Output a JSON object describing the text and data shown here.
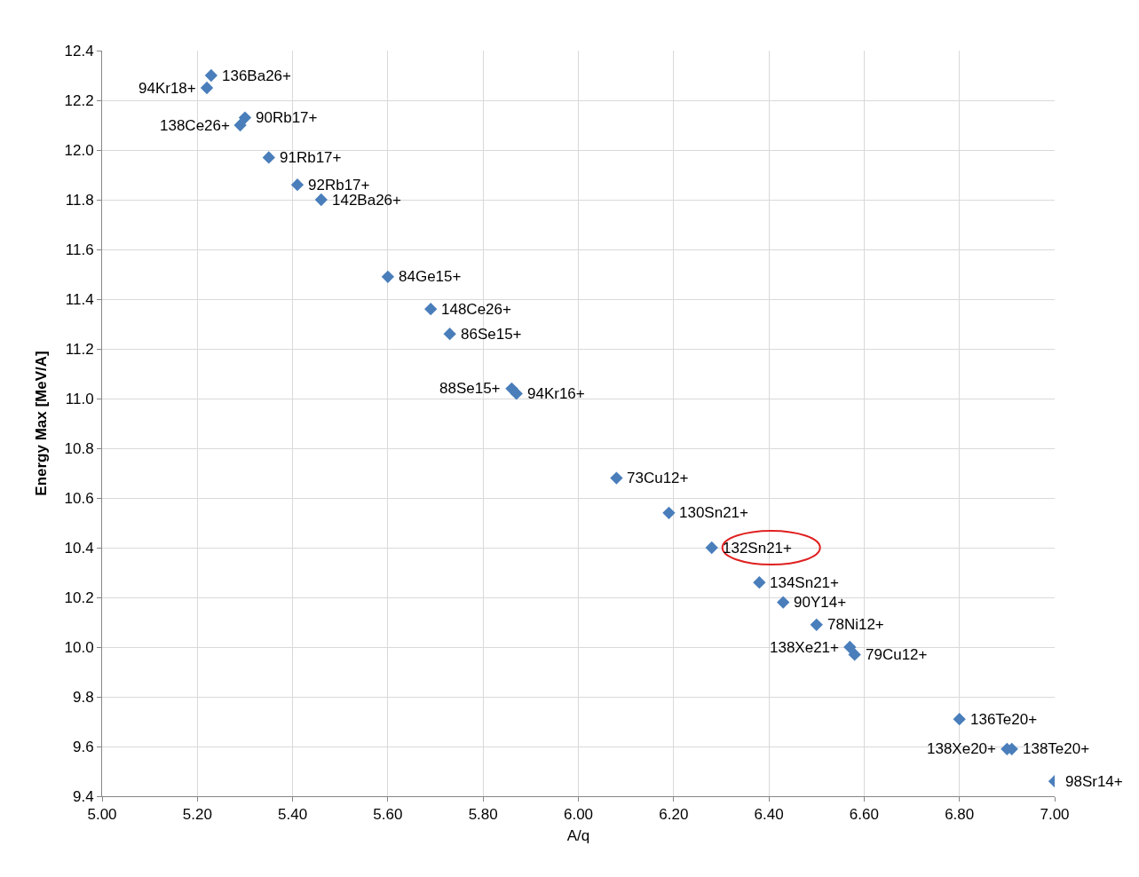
{
  "chart_data": {
    "type": "scatter",
    "xlabel": "A/q",
    "ylabel": "Energy Max [MeV/A]",
    "series": [
      {
        "color": "#4a7ebb",
        "x": [
          5.229,
          5.22,
          5.3,
          5.29,
          5.35,
          5.41,
          5.46,
          5.6,
          5.69,
          5.73,
          5.86,
          5.87,
          6.08,
          6.19,
          6.28,
          6.38,
          6.43,
          6.5,
          6.57,
          6.58,
          6.8,
          6.9,
          6.91,
          7.0
        ],
        "values": [
          12.3,
          12.25,
          12.13,
          12.1,
          11.97,
          11.86,
          11.8,
          11.49,
          11.36,
          11.26,
          11.04,
          11.02,
          10.68,
          10.54,
          10.4,
          10.26,
          10.18,
          10.09,
          10.0,
          9.97,
          9.71,
          9.59,
          9.59,
          9.46
        ]
      }
    ],
    "annotations": [
      {
        "text": "136Ba26+",
        "x": 5.229,
        "y": 12.3
      },
      {
        "text": "94Kr18+",
        "x": 5.22,
        "y": 12.25
      },
      {
        "text": "90Rb17+",
        "x": 5.3,
        "y": 12.13
      },
      {
        "text": "138Ce26+",
        "x": 5.29,
        "y": 12.1
      },
      {
        "text": "91Rb17+",
        "x": 5.35,
        "y": 11.97
      },
      {
        "text": "92Rb17+",
        "x": 5.41,
        "y": 11.86
      },
      {
        "text": "142Ba26+",
        "x": 5.46,
        "y": 11.8
      },
      {
        "text": "84Ge15+",
        "x": 5.6,
        "y": 11.49
      },
      {
        "text": "148Ce26+",
        "x": 5.69,
        "y": 11.36
      },
      {
        "text": "86Se15+",
        "x": 5.73,
        "y": 11.26
      },
      {
        "text": "88Se15+",
        "x": 5.86,
        "y": 11.04
      },
      {
        "text": "94Kr16+",
        "x": 5.87,
        "y": 11.02
      },
      {
        "text": "73Cu12+",
        "x": 6.08,
        "y": 10.68
      },
      {
        "text": "130Sn21+",
        "x": 6.19,
        "y": 10.54
      },
      {
        "text": "132Sn21+",
        "x": 6.28,
        "y": 10.4
      },
      {
        "text": "134Sn21+",
        "x": 6.38,
        "y": 10.26
      },
      {
        "text": "90Y14+",
        "x": 6.43,
        "y": 10.18
      },
      {
        "text": "78Ni12+",
        "x": 6.5,
        "y": 10.09
      },
      {
        "text": "138Xe21+",
        "x": 6.57,
        "y": 10.0
      },
      {
        "text": "79Cu12+",
        "x": 6.58,
        "y": 9.97
      },
      {
        "text": "136Te20+",
        "x": 6.8,
        "y": 9.71
      },
      {
        "text": "138Xe20+",
        "x": 6.9,
        "y": 9.59
      },
      {
        "text": "138Te20+",
        "x": 6.91,
        "y": 9.59
      },
      {
        "text": "98Sr14+",
        "x": 7.0,
        "y": 9.46
      }
    ],
    "xlim": [
      5.0,
      7.0
    ],
    "xticks": [
      {
        "value": 5.0,
        "label": "5.00"
      },
      {
        "value": 5.2,
        "label": "5.20"
      },
      {
        "value": 5.4,
        "label": "5.40"
      },
      {
        "value": 5.6,
        "label": "5.60"
      },
      {
        "value": 5.8,
        "label": "5.80"
      },
      {
        "value": 6.0,
        "label": "6.00"
      },
      {
        "value": 6.2,
        "label": "6.20"
      },
      {
        "value": 6.4,
        "label": "6.40"
      },
      {
        "value": 6.6,
        "label": "6.60"
      },
      {
        "value": 6.8,
        "label": "6.80"
      },
      {
        "value": 7.0,
        "label": "7.00"
      }
    ],
    "ylim": [
      9.4,
      12.4
    ],
    "yticks": [
      9.4,
      9.6,
      9.8,
      {
        "value": 10.0,
        "label": "10.0"
      },
      10.2,
      10.4,
      10.6,
      10.8,
      {
        "value": 11.0,
        "label": "11.0"
      },
      11.2,
      11.4,
      11.6,
      11.8,
      {
        "value": 12.0,
        "label": "12.0"
      },
      12.2,
      12.4
    ],
    "grid": true,
    "legend": false,
    "marker": "diamond"
  }
}
